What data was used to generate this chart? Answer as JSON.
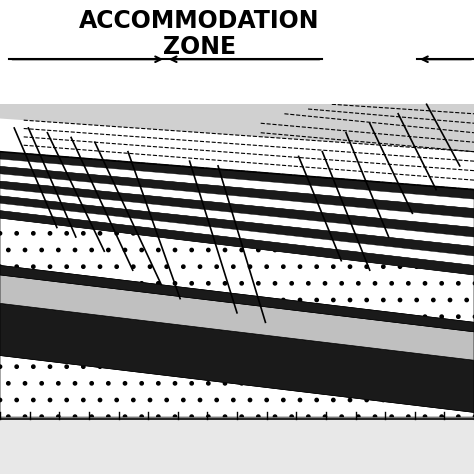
{
  "title_line1": "ACCOMMODATION",
  "title_line2": "ZONE",
  "title_fontsize": 17,
  "title_fontweight": "bold",
  "bg_color": "#ffffff",
  "figsize": [
    4.74,
    4.74
  ],
  "dpi": 100
}
